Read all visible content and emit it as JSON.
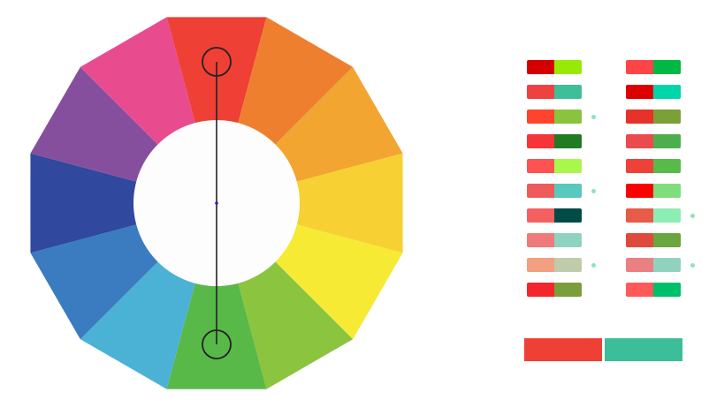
{
  "wheel": {
    "segments": [
      {
        "name": "red",
        "color": "#EE4035"
      },
      {
        "name": "red-orange",
        "color": "#EE7F2E"
      },
      {
        "name": "orange",
        "color": "#F2A530"
      },
      {
        "name": "yellow-orange",
        "color": "#F7D033"
      },
      {
        "name": "yellow",
        "color": "#F6EA35"
      },
      {
        "name": "yellow-green",
        "color": "#8BC43F"
      },
      {
        "name": "green",
        "color": "#58B848"
      },
      {
        "name": "blue-green",
        "color": "#4BB2D6"
      },
      {
        "name": "blue",
        "color": "#3B7BC0"
      },
      {
        "name": "blue-violet",
        "color": "#30489E"
      },
      {
        "name": "violet",
        "color": "#864F9E"
      },
      {
        "name": "red-violet",
        "color": "#E94C8E"
      }
    ],
    "hub_color": "#FDFDFD",
    "handle_stroke": "#222222",
    "center_dot_color": "#2222CC",
    "selected_segments": [
      "red",
      "green"
    ]
  },
  "palettes": {
    "left": [
      {
        "a": "#D40000",
        "b": "#98EA06",
        "marked": false
      },
      {
        "a": "#EE4240",
        "b": "#3EBF9A",
        "marked": false
      },
      {
        "a": "#FF442D",
        "b": "#88C43E",
        "marked": true
      },
      {
        "a": "#F43638",
        "b": "#227A25",
        "marked": false
      },
      {
        "a": "#FF5252",
        "b": "#AAF74C",
        "marked": false
      },
      {
        "a": "#EF5B5B",
        "b": "#59C8BD",
        "marked": true
      },
      {
        "a": "#F4605F",
        "b": "#004B46",
        "marked": false
      },
      {
        "a": "#EE7A7B",
        "b": "#8DD3BF",
        "marked": false
      },
      {
        "a": "#F29F82",
        "b": "#C0CCA9",
        "marked": true
      },
      {
        "a": "#F2262C",
        "b": "#7A9F3A",
        "marked": false
      }
    ],
    "right": [
      {
        "a": "#FF4447",
        "b": "#00B844",
        "marked": false
      },
      {
        "a": "#DE0000",
        "b": "#00D6AA",
        "marked": false
      },
      {
        "a": "#E5332A",
        "b": "#7C9F37",
        "marked": false
      },
      {
        "a": "#EB4B4F",
        "b": "#4DAE4E",
        "marked": false
      },
      {
        "a": "#EE4138",
        "b": "#57BA49",
        "marked": false
      },
      {
        "a": "#FF0000",
        "b": "#80DD7C",
        "marked": false
      },
      {
        "a": "#E75B48",
        "b": "#8CEEB5",
        "marked": true
      },
      {
        "a": "#DE4A3C",
        "b": "#69A63D",
        "marked": false
      },
      {
        "a": "#EB8082",
        "b": "#8FD3BF",
        "marked": true
      },
      {
        "a": "#FF5A5A",
        "b": "#00BF6B",
        "marked": false
      }
    ]
  },
  "result": {
    "primary": "#EE4035",
    "secondary": "#3DBE9A"
  }
}
